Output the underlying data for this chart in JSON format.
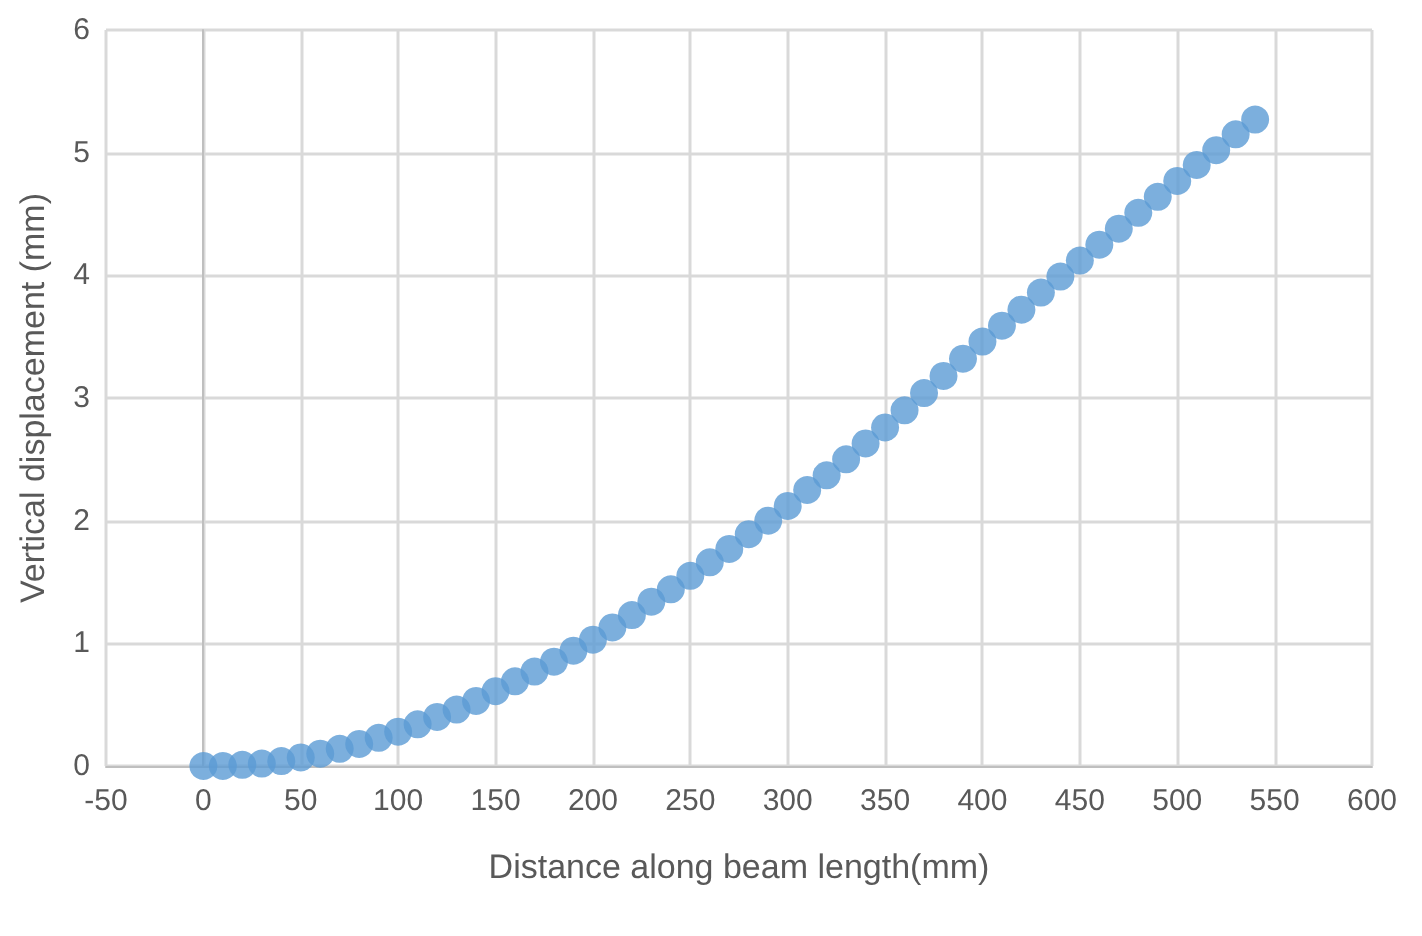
{
  "chart_data": {
    "type": "scatter",
    "xlabel": "Distance along beam length(mm)",
    "ylabel": "Vertical displacement (mm)",
    "x": [
      0,
      10,
      20,
      30,
      40,
      50,
      60,
      70,
      80,
      90,
      100,
      110,
      120,
      130,
      140,
      150,
      160,
      170,
      180,
      190,
      200,
      210,
      220,
      230,
      240,
      250,
      260,
      270,
      280,
      290,
      300,
      310,
      320,
      330,
      340,
      350,
      360,
      370,
      380,
      390,
      400,
      410,
      420,
      430,
      440,
      450,
      460,
      470,
      480,
      490,
      500,
      510,
      520,
      530,
      540
    ],
    "series": [
      {
        "color": "#5b9bd5",
        "values": [
          0,
          0.0,
          0.01,
          0.02,
          0.04,
          0.07,
          0.1,
          0.14,
          0.18,
          0.23,
          0.28,
          0.34,
          0.4,
          0.46,
          0.53,
          0.61,
          0.69,
          0.77,
          0.85,
          0.94,
          1.03,
          1.13,
          1.23,
          1.34,
          1.44,
          1.55,
          1.66,
          1.77,
          1.89,
          2.0,
          2.12,
          2.25,
          2.37,
          2.5,
          2.63,
          2.76,
          2.9,
          3.04,
          3.18,
          3.32,
          3.46,
          3.59,
          3.72,
          3.86,
          3.99,
          4.12,
          4.25,
          4.38,
          4.51,
          4.64,
          4.77,
          4.9,
          5.02,
          5.15,
          5.27
        ]
      }
    ],
    "xlim": [
      -50,
      600
    ],
    "xticks": [
      -50,
      0,
      50,
      100,
      150,
      200,
      250,
      300,
      350,
      400,
      450,
      500,
      550,
      600
    ],
    "ylim": [
      0,
      6
    ],
    "yticks": [
      0,
      1,
      2,
      3,
      4,
      5,
      6
    ],
    "grid": true,
    "marker": "circle"
  }
}
